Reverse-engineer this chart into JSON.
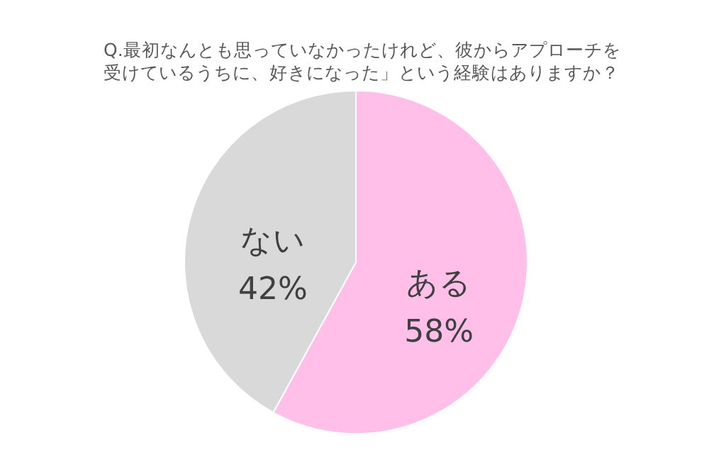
{
  "chart_data": {
    "type": "pie",
    "title": "Q.最初なんとも思っていなかったけれど、彼からアプローチを受けているうちに、好きになった」という経験はありますか？",
    "categories": [
      "ある",
      "ない"
    ],
    "values": [
      58,
      42
    ],
    "colors": [
      "#ffbfe8",
      "#d9d9d9"
    ],
    "value_labels": [
      "58%",
      "42%"
    ]
  }
}
